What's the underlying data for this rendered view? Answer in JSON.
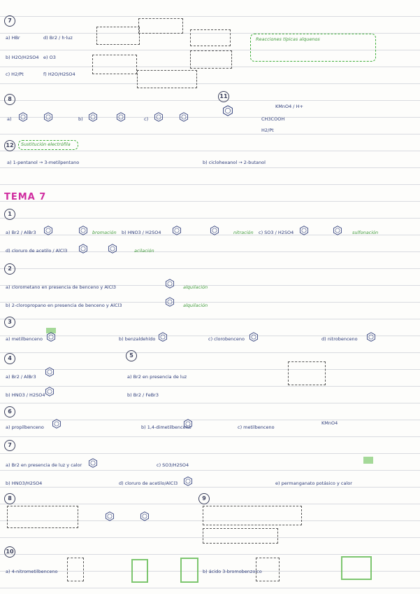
{
  "top": {
    "number": "7",
    "items": [
      "a) HBr",
      "d) Br2 / h·luz",
      "b) H2O/H2SO4",
      "e) O3",
      "c) H2/Pt",
      "f) H2O/H2SO4"
    ],
    "note": "Reacciones típicas alquenos"
  },
  "s8": {
    "number": "8",
    "items": [
      "a)",
      "b)",
      "c)"
    ]
  },
  "s11": {
    "number": "11",
    "items": [
      "KMnO4 / H+",
      "CH3COOH",
      "H2/Pt"
    ]
  },
  "s12": {
    "number": "12",
    "note": "Sustitución electrófila",
    "items": [
      "a) 1-pentanol → 3-metilpentano",
      "b) ciclohexanol → 2-butanol"
    ]
  },
  "heading": "TEMA 7",
  "t1": {
    "number": "1",
    "items": [
      "a) Br2 / AlBr3",
      "bromación",
      "b) HNO3 / H2SO4",
      "nitración",
      "c) SO3 / H2SO4",
      "sulfonación",
      "d) cloruro de acetilo / AlCl3",
      "acilación"
    ]
  },
  "t2": {
    "number": "2",
    "items": [
      "a) clorometano en presencia de benceno y AlCl3",
      "alquilación",
      "b) 2-cloropropano en presencia de benceno y AlCl3",
      "alquilación"
    ]
  },
  "t3": {
    "number": "3",
    "items": [
      "a) metilbenceno",
      "b) benzaldehído",
      "c) clorobenceno",
      "d) nitrobenceno"
    ]
  },
  "t4": {
    "number": "4",
    "items": [
      "a) Br2 / AlBr3",
      "b) HNO3 / H2SO4"
    ]
  },
  "t5": {
    "number": "5",
    "items": [
      "a) Br2 en presencia de luz",
      "b) Br2 / FeBr3"
    ]
  },
  "t6": {
    "number": "6",
    "items": [
      "a) propilbenceno",
      "b) 1,4-dimetilbenceno",
      "c) metilbenceno",
      "KMnO4"
    ]
  },
  "t7": {
    "number": "7",
    "items": [
      "a) Br2 en presencia de luz y calor",
      "b) HNO3/H2SO4",
      "c) SO3/H2SO4",
      "d) cloruro de acetilo/AlCl3",
      "e) permanganato potásico y calor"
    ]
  },
  "t8": {
    "number": "8"
  },
  "t9": {
    "number": "9"
  },
  "t10": {
    "number": "10",
    "items": [
      "a) 4-nitrometilbenceno",
      "b) ácido 3-bromobenzoico"
    ]
  }
}
